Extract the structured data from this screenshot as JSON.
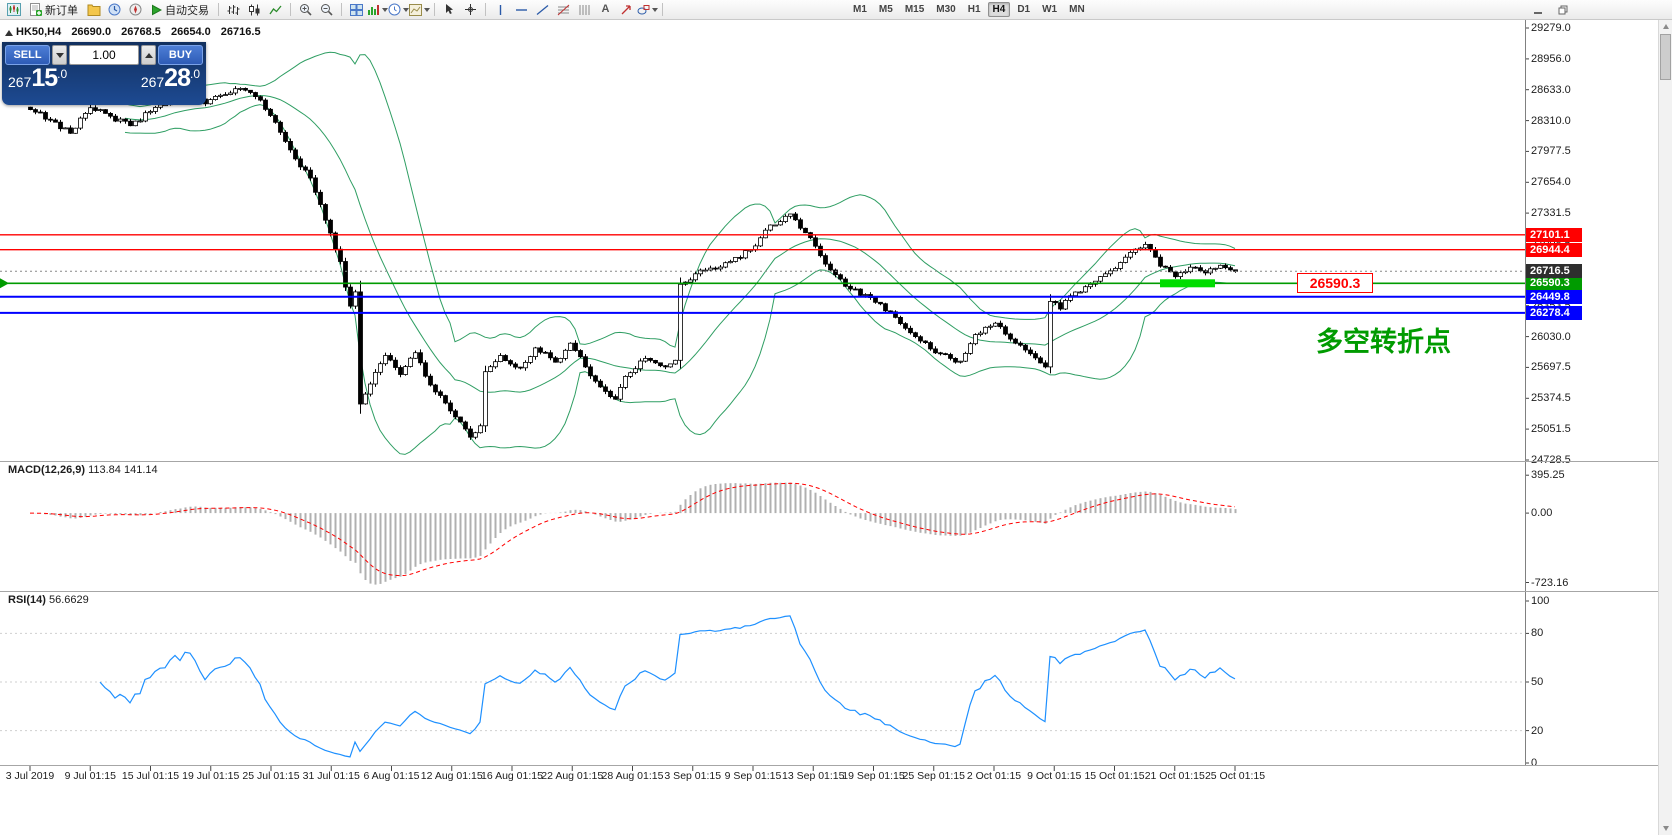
{
  "toolbar": {
    "new_order_label": "新订单",
    "autotrading_label": "自动交易",
    "text_tool_glyph": "A",
    "timeframes": [
      "M1",
      "M5",
      "M15",
      "M30",
      "H1",
      "H4",
      "D1",
      "W1",
      "MN"
    ],
    "active_timeframe": "H4"
  },
  "chart_header": {
    "symbol_period": "HK50,H4",
    "open": "26690.0",
    "high": "26768.5",
    "low": "26654.0",
    "close": "26716.5"
  },
  "trade_panel": {
    "sell_label": "SELL",
    "buy_label": "BUY",
    "volume": "1.00",
    "sell_price": "26715.0",
    "buy_price": "26728.0"
  },
  "objects": {
    "floating_price_label": "26590.3",
    "floating_price_color": "#ff0000",
    "annotation_text": "多空转折点",
    "annotation_color": "#009b00"
  },
  "chart_data": {
    "type": "candlestick",
    "symbol": "HK50",
    "timeframe": "H4",
    "last_ohlc": {
      "open": 26690.0,
      "high": 26768.5,
      "low": 26654.0,
      "close": 26716.5
    },
    "bar_count": 242,
    "close_anchors": [
      [
        0,
        28420
      ],
      [
        4,
        28310
      ],
      [
        8,
        28170
      ],
      [
        12,
        28440
      ],
      [
        16,
        28350
      ],
      [
        20,
        28250
      ],
      [
        24,
        28400
      ],
      [
        28,
        28530
      ],
      [
        32,
        28620
      ],
      [
        35,
        28480
      ],
      [
        38,
        28570
      ],
      [
        41,
        28640
      ],
      [
        44,
        28600
      ],
      [
        46,
        28520
      ],
      [
        50,
        28180
      ],
      [
        53,
        27900
      ],
      [
        56,
        27700
      ],
      [
        58,
        27420
      ],
      [
        60,
        27120
      ],
      [
        61,
        26950
      ],
      [
        62,
        26820
      ],
      [
        63,
        26550
      ],
      [
        64,
        26350
      ],
      [
        65,
        26500
      ],
      [
        66,
        25320
      ],
      [
        68,
        25530
      ],
      [
        71,
        25830
      ],
      [
        74,
        25630
      ],
      [
        77,
        25860
      ],
      [
        80,
        25520
      ],
      [
        83,
        25330
      ],
      [
        86,
        25130
      ],
      [
        88,
        24970
      ],
      [
        90,
        25090
      ],
      [
        91,
        25660
      ],
      [
        94,
        25830
      ],
      [
        98,
        25700
      ],
      [
        101,
        25910
      ],
      [
        105,
        25760
      ],
      [
        108,
        25960
      ],
      [
        111,
        25710
      ],
      [
        114,
        25500
      ],
      [
        117,
        25370
      ],
      [
        119,
        25610
      ],
      [
        123,
        25800
      ],
      [
        127,
        25710
      ],
      [
        129,
        25780
      ],
      [
        130,
        26580
      ],
      [
        133,
        26690
      ],
      [
        136,
        26750
      ],
      [
        140,
        26820
      ],
      [
        144,
        26940
      ],
      [
        147,
        27150
      ],
      [
        150,
        27240
      ],
      [
        152,
        27320
      ],
      [
        154,
        27170
      ],
      [
        156,
        27070
      ],
      [
        160,
        26730
      ],
      [
        164,
        26530
      ],
      [
        168,
        26440
      ],
      [
        172,
        26290
      ],
      [
        176,
        26070
      ],
      [
        180,
        25900
      ],
      [
        184,
        25800
      ],
      [
        186,
        25770
      ],
      [
        189,
        26050
      ],
      [
        193,
        26170
      ],
      [
        197,
        25960
      ],
      [
        200,
        25850
      ],
      [
        203,
        25710
      ],
      [
        204,
        26400
      ],
      [
        206,
        26320
      ],
      [
        208,
        26460
      ],
      [
        212,
        26580
      ],
      [
        215,
        26690
      ],
      [
        218,
        26810
      ],
      [
        221,
        26950
      ],
      [
        223,
        27000
      ],
      [
        226,
        26770
      ],
      [
        229,
        26660
      ],
      [
        232,
        26760
      ],
      [
        235,
        26700
      ],
      [
        238,
        26780
      ],
      [
        241,
        26716.5
      ]
    ],
    "overlays": {
      "bollinger_period": 20,
      "bollinger_dev": 2
    },
    "levels": [
      {
        "label": "27101.1",
        "price": 27101.1,
        "color": "#ff0000",
        "width": 1.4
      },
      {
        "label": "26944.4",
        "price": 26944.4,
        "color": "#ff0000",
        "width": 1.4
      },
      {
        "label": "26590.3",
        "price": 26590.3,
        "color": "#009b00",
        "width": 1.6
      },
      {
        "label": "26449.8",
        "price": 26449.8,
        "color": "#0000ff",
        "width": 2
      },
      {
        "label": "26278.4",
        "price": 26278.4,
        "color": "#0000ff",
        "width": 2
      }
    ],
    "current_price": {
      "label": "26716.5",
      "price": 26716.5,
      "tag_color": "#2e2e2e"
    },
    "highlight_zone": {
      "price": 26590.3,
      "from_bar": 226,
      "to_bar": 237,
      "color": "#00dd00"
    },
    "price_axis_ticks": [
      "29279.0",
      "28956.0",
      "28633.0",
      "28310.0",
      "27977.5",
      "27654.0",
      "27331.5",
      "27008.5",
      "26685.5",
      "26353.5",
      "26030.0",
      "25697.5",
      "25374.5",
      "25051.5",
      "24728.5"
    ],
    "time_axis_labels": [
      "3 Jul 2019",
      "9 Jul 01:15",
      "15 Jul 01:15",
      "19 Jul 01:15",
      "25 Jul 01:15",
      "31 Jul 01:15",
      "6 Aug 01:15",
      "12 Aug 01:15",
      "16 Aug 01:15",
      "22 Aug 01:15",
      "28 Aug 01:15",
      "3 Sep 01:15",
      "9 Sep 01:15",
      "13 Sep 01:15",
      "19 Sep 01:15",
      "25 Sep 01:15",
      "2 Oct 01:15",
      "9 Oct 01:15",
      "15 Oct 01:15",
      "21 Oct 01:15",
      "25 Oct 01:15"
    ],
    "macd": {
      "label": "MACD(12,26,9)",
      "display_values": "113.84 141.14",
      "axis_ticks": [
        395.25,
        0,
        -723.16
      ],
      "hist_color": "#b0b0b0",
      "signal_color": "#ff0000"
    },
    "rsi": {
      "label": "RSI(14)",
      "display_value": "56.6629",
      "axis_ticks": [
        100,
        80,
        50,
        20,
        0
      ],
      "levels": [
        80,
        50,
        20
      ],
      "color": "#1e90ff"
    },
    "colors": {
      "bollinger": "#2f9e63",
      "candle_up": "#ffffff",
      "candle_down": "#000000",
      "level_green": "#009b00",
      "level_blue": "#0000ff",
      "level_red": "#ff0000"
    }
  }
}
